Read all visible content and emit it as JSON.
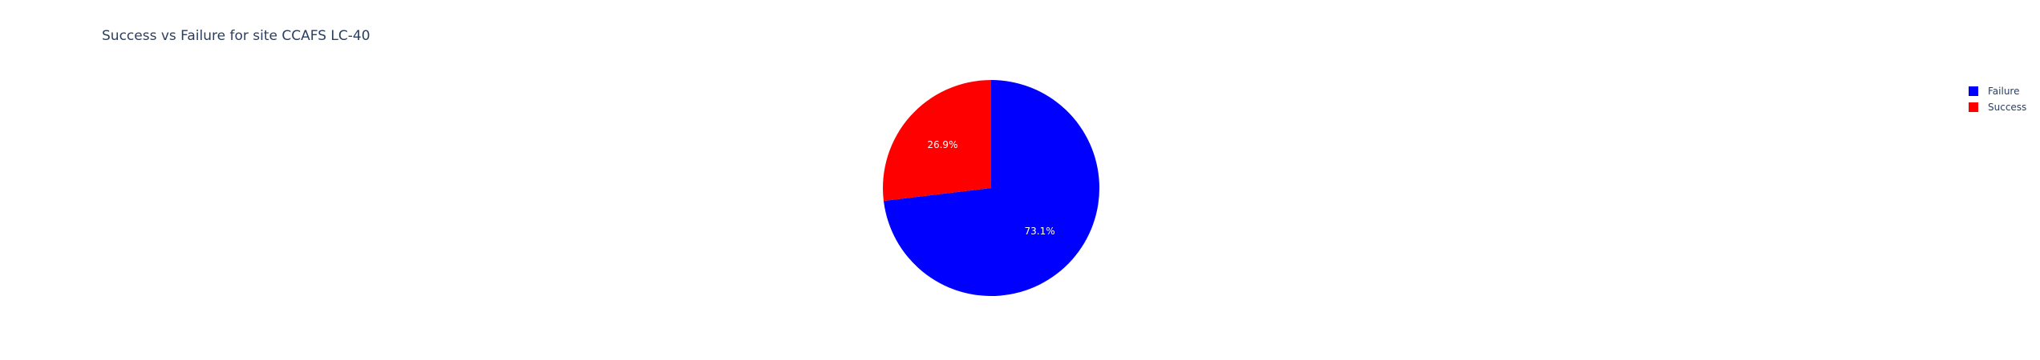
{
  "chart_data": {
    "type": "pie",
    "title": "Success vs Failure for site CCAFS LC-40",
    "labels": [
      "Failure",
      "Success"
    ],
    "values": [
      73.1,
      26.9
    ],
    "percent_labels": [
      "73.1%",
      "26.9%"
    ],
    "colors": [
      "#0000ff",
      "#ff0000"
    ],
    "legend": {
      "placement": "top-right",
      "entries": [
        "Failure",
        "Success"
      ]
    }
  }
}
